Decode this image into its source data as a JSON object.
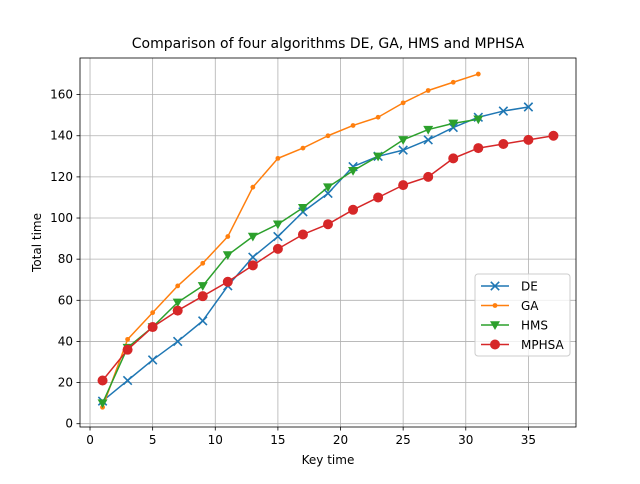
{
  "chart_data": {
    "type": "line",
    "title": "Comparison of four algorithms DE, GA, HMS and MPHSA",
    "xlabel": "Key time",
    "ylabel": "Total time",
    "xlim": [
      -0.8,
      38.8
    ],
    "ylim": [
      -1.6,
      177.8
    ],
    "xticks": [
      0,
      5,
      10,
      15,
      20,
      25,
      30,
      35
    ],
    "yticks": [
      0,
      20,
      40,
      60,
      80,
      100,
      120,
      140,
      160
    ],
    "grid": true,
    "legend_position": "center-right",
    "series": [
      {
        "name": "DE",
        "color": "#1f77b4",
        "marker": "x",
        "x": [
          1,
          3,
          5,
          7,
          9,
          11,
          13,
          15,
          17,
          19,
          21,
          23,
          25,
          27,
          29,
          31,
          33,
          35
        ],
        "y": [
          11,
          21,
          31,
          40,
          50,
          67,
          81,
          91,
          103,
          112,
          125,
          130,
          133,
          138,
          144,
          149,
          152,
          154
        ]
      },
      {
        "name": "GA",
        "color": "#ff7f0e",
        "marker": "dot",
        "x": [
          1,
          3,
          5,
          7,
          9,
          11,
          13,
          15,
          17,
          19,
          21,
          23,
          25,
          27,
          29,
          31
        ],
        "y": [
          8,
          41,
          54,
          67,
          78,
          91,
          115,
          129,
          134,
          140,
          145,
          149,
          156,
          162,
          166,
          170
        ]
      },
      {
        "name": "HMS",
        "color": "#2ca02c",
        "marker": "triangle-down",
        "x": [
          1,
          3,
          5,
          7,
          9,
          11,
          13,
          15,
          17,
          19,
          21,
          23,
          25,
          27,
          29,
          31
        ],
        "y": [
          10,
          37,
          47,
          59,
          67,
          82,
          91,
          97,
          105,
          115,
          123,
          130,
          138,
          143,
          146,
          148
        ]
      },
      {
        "name": "MPHSA",
        "color": "#d62728",
        "marker": "circle",
        "x": [
          1,
          3,
          5,
          7,
          9,
          11,
          13,
          15,
          17,
          19,
          21,
          23,
          25,
          27,
          29,
          31,
          33,
          35,
          37
        ],
        "y": [
          21,
          36,
          47,
          55,
          62,
          69,
          77,
          85,
          92,
          97,
          104,
          110,
          116,
          120,
          129,
          134,
          136,
          138,
          140
        ]
      }
    ]
  }
}
